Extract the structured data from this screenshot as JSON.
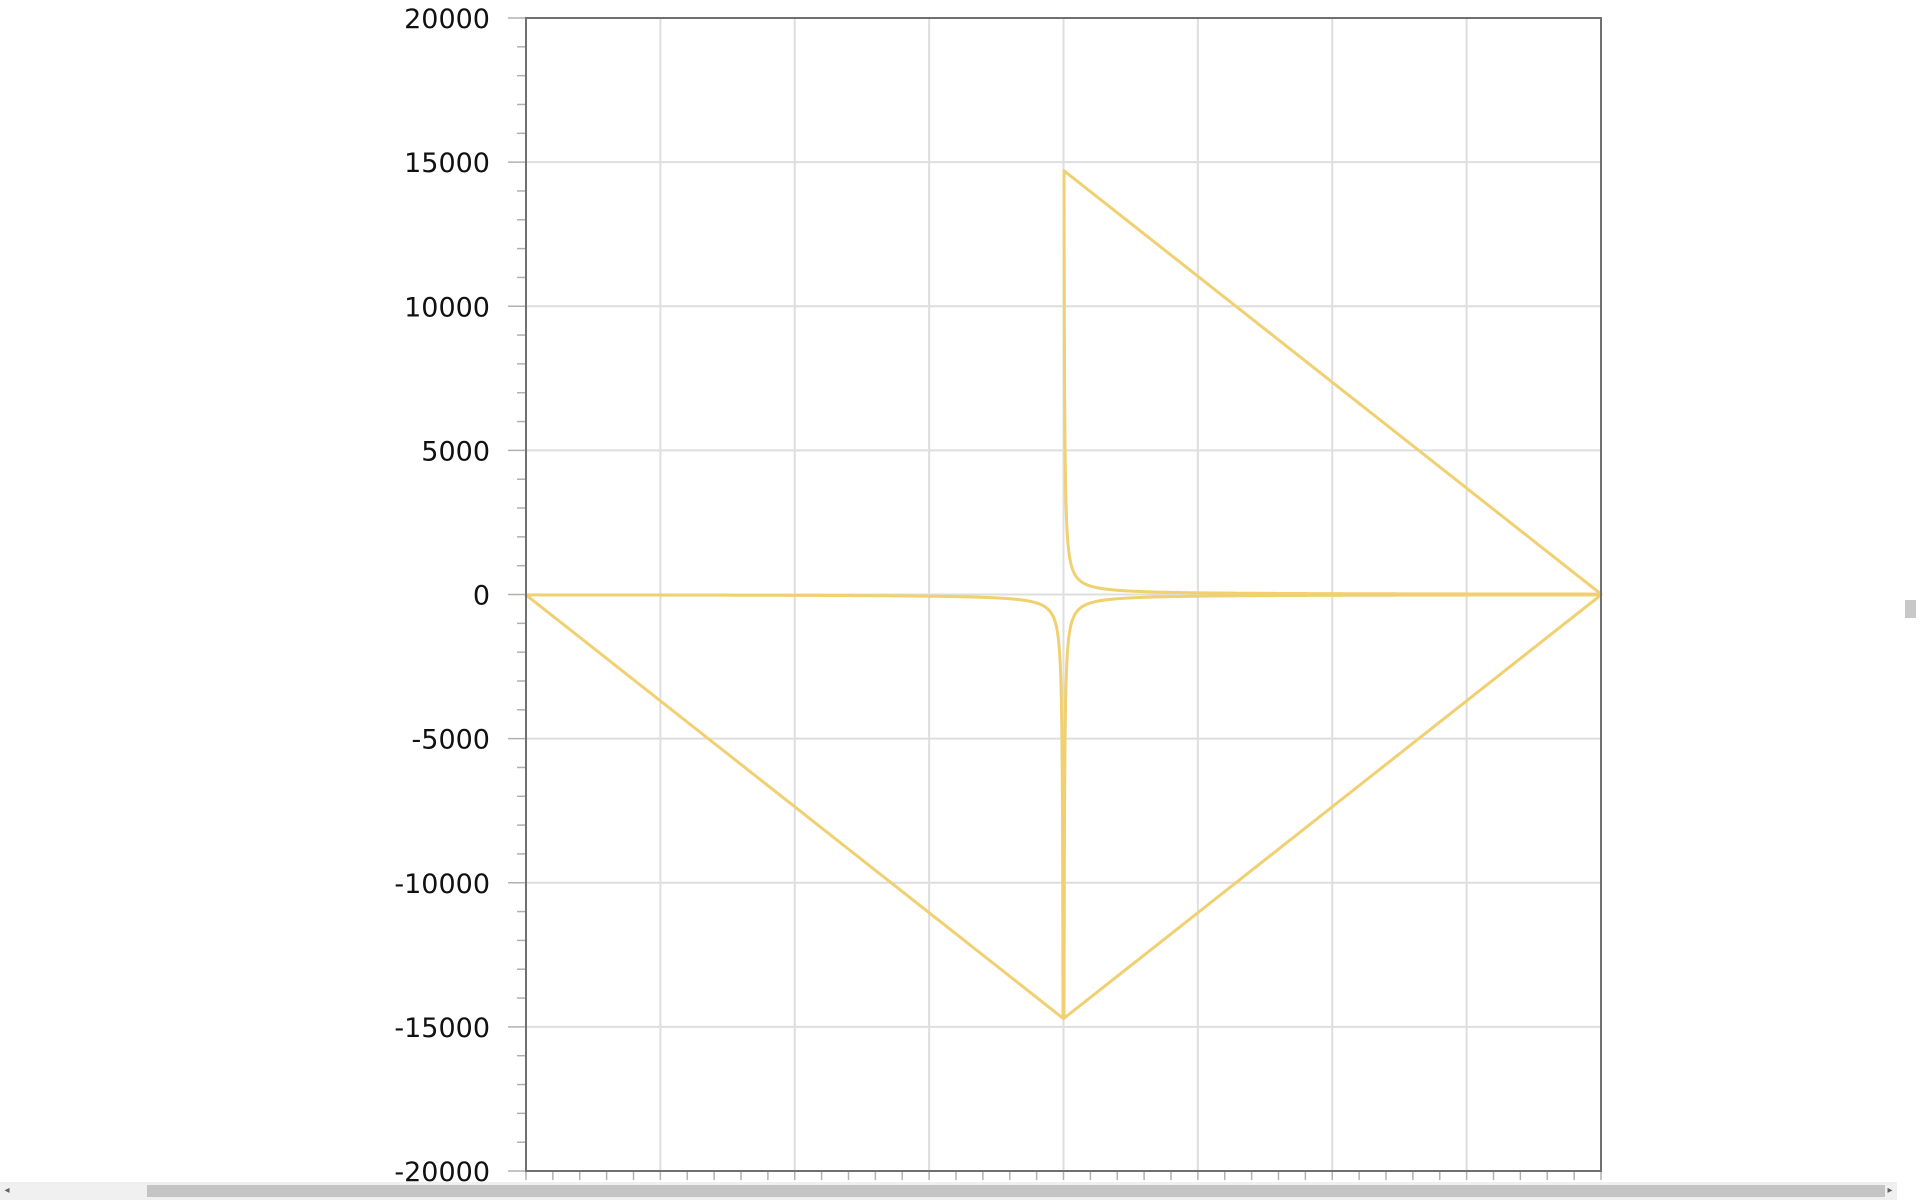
{
  "chart_data": {
    "type": "line",
    "title": "",
    "xlabel": "",
    "ylabel": "",
    "ylim": [
      -20000,
      20000
    ],
    "xlim": [
      -2,
      2
    ],
    "y_ticks": [
      20000,
      15000,
      10000,
      5000,
      0,
      -5000,
      -10000,
      -15000,
      -20000
    ],
    "y_tick_labels": [
      "20000",
      "15000",
      "10000",
      "5000",
      "0",
      "-5000",
      "-10000",
      "-15000",
      "-20000"
    ],
    "x_gridlines": [
      -1.5,
      -1,
      -0.5,
      0,
      0.5,
      1,
      1.5
    ],
    "x_tick_labels": [],
    "grid": true,
    "legend": "none",
    "series_color": "#f0d070",
    "series": [
      {
        "function": "y = 29.4 / x",
        "k": 29.4,
        "x_start": 0.002,
        "x_end": 2,
        "closing_points": [
          [
            2,
            14.7
          ],
          [
            0.002,
            14700
          ]
        ]
      },
      {
        "function": "y = -29.4 / x",
        "k": -29.4,
        "x_start": 0.002,
        "x_end": 2,
        "closing_points": [
          [
            2,
            -14.7
          ],
          [
            0.002,
            -14700
          ]
        ]
      },
      {
        "function": "y = 29.4 / x",
        "k": 29.4,
        "x_start": -0.002,
        "x_end": -2,
        "closing_points": [
          [
            -2,
            -14.7
          ],
          [
            -0.002,
            -14700
          ]
        ]
      }
    ]
  },
  "scrollbars": {
    "left_arrow": "◂",
    "right_arrow": "▸"
  }
}
